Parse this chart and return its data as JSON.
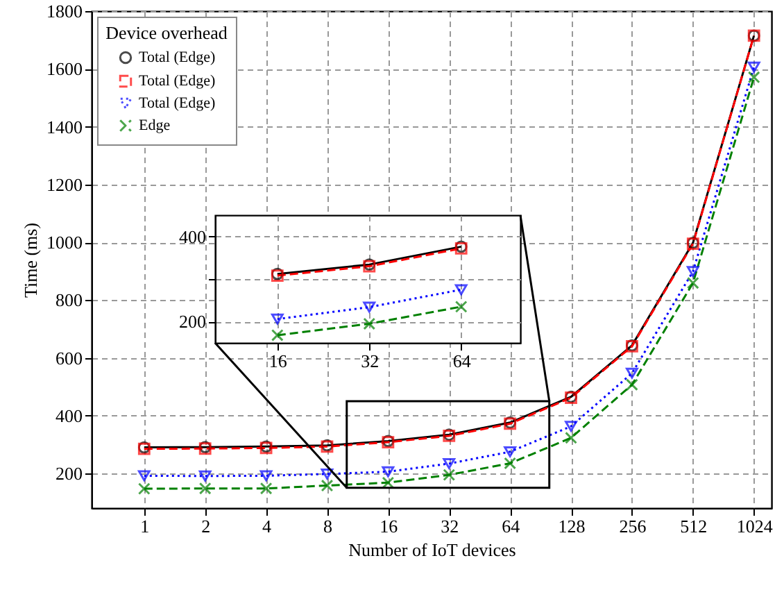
{
  "chart_data": [
    {
      "type": "line",
      "xlabel": "Number of IoT devices",
      "ylabel": "Time (ms)",
      "legend_title": "Device overhead",
      "legend": "top left",
      "grid": true,
      "log": "x",
      "x": [
        1,
        2,
        4,
        8,
        16,
        32,
        64,
        128,
        256,
        512,
        1024
      ],
      "xlim": [
        0.55,
        1250
      ],
      "xticks": [
        1,
        2,
        4,
        8,
        16,
        32,
        64,
        128,
        256,
        512,
        1024
      ],
      "ylim": [
        80,
        1800
      ],
      "yticks": [
        200,
        400,
        600,
        800,
        1000,
        1200,
        1400,
        1600,
        1800
      ],
      "series": [
        {
          "name": "Total (Edge)",
          "color": "#000000",
          "marker": "circle",
          "line_style": "solid",
          "values": [
            290,
            291,
            293,
            297,
            312,
            334,
            376,
            465,
            643,
            998,
            1715
          ]
        },
        {
          "name": "Total (Edge)",
          "color": "#ff0000",
          "marker": "square",
          "line_style": "dashed",
          "values": [
            285,
            286,
            288,
            293,
            308,
            330,
            372,
            462,
            640,
            995,
            1715
          ]
        },
        {
          "name": "Total (Edge)",
          "color": "#0000ff",
          "marker": "triangle",
          "line_style": "dotted",
          "values": [
            192,
            191,
            192,
            198,
            206,
            234,
            275,
            363,
            547,
            899,
            1606
          ]
        },
        {
          "name": "Edge",
          "color": "#008000",
          "marker": "cross",
          "line_style": "dashed",
          "values": [
            147,
            148,
            148,
            158,
            168,
            195,
            235,
            323,
            507,
            859,
            1571
          ]
        }
      ]
    },
    {
      "type": "line",
      "grid": true,
      "log": "x",
      "x": [
        16,
        32,
        64
      ],
      "xlim": [
        10,
        100
      ],
      "xticks": [
        16,
        32,
        64
      ],
      "ylim": [
        150,
        450
      ],
      "yticks": [
        200,
        {
          "value": 300,
          "label": null
        },
        400
      ],
      "series": [
        {
          "color": "#000000",
          "marker": "circle",
          "line_style": "solid",
          "values": [
            312,
            334,
            376
          ]
        },
        {
          "color": "#ff0000",
          "marker": "square",
          "line_style": "dashed",
          "values": [
            308,
            330,
            372
          ]
        },
        {
          "color": "#0000ff",
          "marker": "triangle",
          "line_style": "dotted",
          "values": [
            206,
            234,
            275
          ]
        },
        {
          "color": "#008000",
          "marker": "cross",
          "line_style": "dashed",
          "values": [
            168,
            195,
            235
          ]
        }
      ]
    }
  ]
}
